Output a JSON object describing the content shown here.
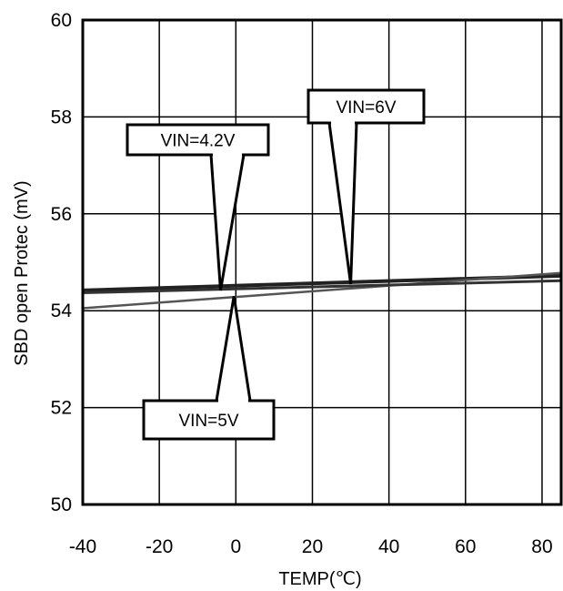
{
  "chart_data": {
    "type": "line",
    "title": "",
    "xlabel": "TEMP(℃)",
    "ylabel": "SBD open Protec (mV)",
    "xlim": [
      -40,
      85
    ],
    "ylim": [
      50,
      60
    ],
    "xticks": [
      -40,
      -20,
      0,
      20,
      40,
      60,
      80
    ],
    "yticks": [
      50,
      52,
      54,
      56,
      58,
      60
    ],
    "grid": true,
    "series": [
      {
        "name": "VIN=4.2V",
        "color": "#222222",
        "x": [
          -40,
          85
        ],
        "y": [
          54.42,
          54.72
        ]
      },
      {
        "name": "VIN=5V",
        "color": "#555555",
        "x": [
          -40,
          85
        ],
        "y": [
          54.05,
          54.78
        ]
      },
      {
        "name": "VIN=6V",
        "color": "#333333",
        "x": [
          -40,
          85
        ],
        "y": [
          54.37,
          54.62
        ]
      }
    ],
    "annotations": [
      {
        "label": "VIN=4.2V",
        "series": "VIN=4.2V",
        "pointer": [
          -4,
          54.42
        ]
      },
      {
        "label": "VIN=6V",
        "series": "VIN=6V",
        "pointer": [
          30,
          54.55
        ]
      },
      {
        "label": "VIN=5V",
        "series": "VIN=5V",
        "pointer": [
          -0.5,
          54.3
        ]
      }
    ]
  }
}
